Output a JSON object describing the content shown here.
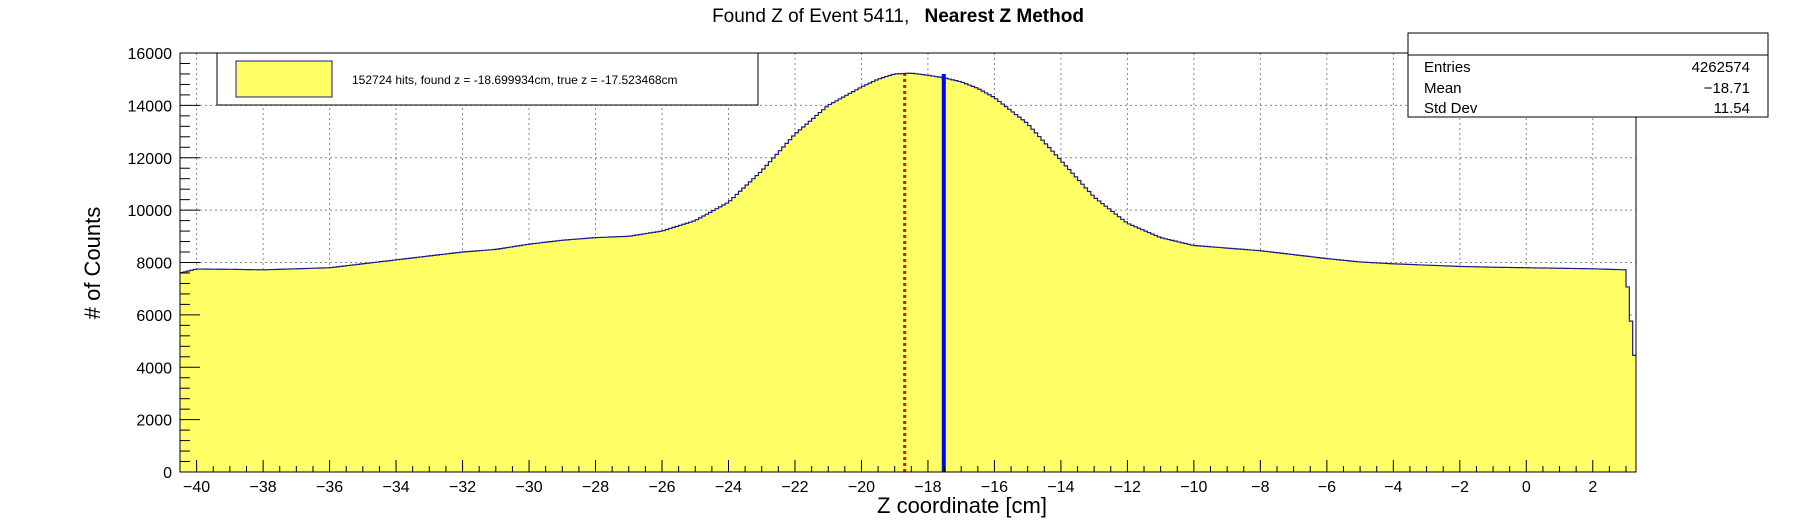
{
  "chart_data": {
    "type": "area",
    "title": "Found Z of Event 5411,",
    "title_bold": "Nearest Z Method",
    "xlabel": "Z coordinate [cm]",
    "ylabel": "# of Counts",
    "xlim": [
      -40.5,
      3.3
    ],
    "ylim": [
      0,
      16000
    ],
    "grid": true,
    "x_ticks": [
      -40,
      -38,
      -36,
      -34,
      -32,
      -30,
      -28,
      -26,
      -24,
      -22,
      -20,
      -18,
      -16,
      -14,
      -12,
      -10,
      -8,
      -6,
      -4,
      -2,
      0,
      2
    ],
    "x_tick_labels": [
      "−40",
      "−38",
      "−36",
      "−34",
      "−32",
      "−30",
      "−28",
      "−26",
      "−24",
      "−22",
      "−20",
      "−18",
      "−16",
      "−14",
      "−12",
      "−10",
      "−8",
      "−6",
      "−4",
      "−2",
      "0",
      "2"
    ],
    "y_ticks": [
      0,
      2000,
      4000,
      6000,
      8000,
      10000,
      12000,
      14000,
      16000
    ],
    "y_tick_labels": [
      "0",
      "2000",
      "4000",
      "6000",
      "8000",
      "10000",
      "12000",
      "14000",
      "16000"
    ],
    "series": [
      {
        "fill": "#ffff66",
        "line": "#1a1a8c",
        "x": [
          -40.5,
          -40,
          -39,
          -38,
          -37,
          -36,
          -35,
          -34,
          -33,
          -32,
          -31,
          -30,
          -29,
          -28,
          -27,
          -26,
          -25,
          -24,
          -23,
          -22,
          -21,
          -20,
          -19.5,
          -19,
          -18.5,
          -18,
          -17.5,
          -17,
          -16.5,
          -16,
          -15,
          -14,
          -13,
          -12,
          -11,
          -10,
          -9,
          -8,
          -7,
          -6,
          -5,
          -4,
          -3,
          -2,
          -1,
          0,
          1,
          2,
          3,
          3.3
        ],
        "y": [
          7600,
          7750,
          7740,
          7720,
          7760,
          7800,
          7950,
          8100,
          8250,
          8400,
          8500,
          8700,
          8850,
          8950,
          9000,
          9200,
          9600,
          10300,
          11500,
          12900,
          14000,
          14700,
          15000,
          15200,
          15230,
          15150,
          15050,
          14900,
          14650,
          14300,
          13300,
          11900,
          10500,
          9500,
          8950,
          8650,
          8550,
          8450,
          8300,
          8150,
          8020,
          7950,
          7900,
          7850,
          7820,
          7800,
          7780,
          7760,
          7720,
          3800
        ]
      }
    ],
    "markers": [
      {
        "name": "found z",
        "x": -18.699934,
        "color": "#ff0000",
        "style": "dotted"
      },
      {
        "name": "true z",
        "x": -17.523468,
        "color": "#0000ff",
        "style": "solid"
      }
    ],
    "legend": {
      "position": "top-left",
      "label": "152724 hits, found z = -18.699934cm, true z = -17.523468cm",
      "swatch_color": "#ffff66"
    },
    "stats": {
      "position": "top-right",
      "rows": [
        {
          "label": "Entries",
          "value": "4262574"
        },
        {
          "label": "Mean",
          "value": "−18.71"
        },
        {
          "label": "Std Dev",
          "value": "11.54"
        }
      ]
    }
  }
}
